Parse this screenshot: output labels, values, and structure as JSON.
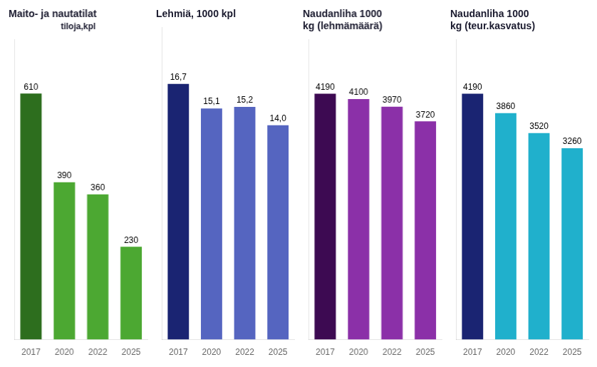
{
  "chart_data": [
    {
      "type": "bar",
      "title": "Maito- ja nautatilat",
      "subtitle": "tiloja,kpl",
      "categories": [
        "2017",
        "2020",
        "2022",
        "2025"
      ],
      "values": [
        610,
        390,
        360,
        230
      ],
      "colors": [
        "#2d6e1e",
        "#4ca832",
        "#4ca832",
        "#4ca832"
      ],
      "ylim": [
        0,
        744.2
      ],
      "grid": false,
      "tick_labels": "x",
      "data_labels": true
    },
    {
      "type": "bar",
      "title": "Lehmiä, 1000 kpl",
      "categories": [
        "2017",
        "2020",
        "2022",
        "2025"
      ],
      "values": [
        16.7,
        15.1,
        15.2,
        14.0
      ],
      "value_labels": [
        "16,7",
        "15,1",
        "15,2",
        "14,0"
      ],
      "colors": [
        "#1a2472",
        "#5565c0",
        "#5565c0",
        "#5565c0"
      ],
      "ylim": [
        0,
        20.374
      ],
      "grid": false,
      "tick_labels": "x",
      "data_labels": true
    },
    {
      "type": "bar",
      "title": "Naudanliha 1000\nkg (lehmämäärä)",
      "categories": [
        "2017",
        "2020",
        "2022",
        "2025"
      ],
      "values": [
        4190,
        4100,
        3970,
        3720
      ],
      "colors": [
        "#3d0a52",
        "#8b30a8",
        "#8b30a8",
        "#8b30a8"
      ],
      "ylim": [
        0,
        5111.8
      ],
      "grid": false,
      "tick_labels": "x",
      "data_labels": true
    },
    {
      "type": "bar",
      "title": "Naudanliha 1000\nkg (teur.kasvatus)",
      "categories": [
        "2017",
        "2020",
        "2022",
        "2025"
      ],
      "values": [
        4190,
        3860,
        3520,
        3260
      ],
      "colors": [
        "#1a2472",
        "#20b0cc",
        "#20b0cc",
        "#20b0cc"
      ],
      "ylim": [
        0,
        5111.8
      ],
      "grid": false,
      "tick_labels": "x",
      "data_labels": true
    }
  ]
}
